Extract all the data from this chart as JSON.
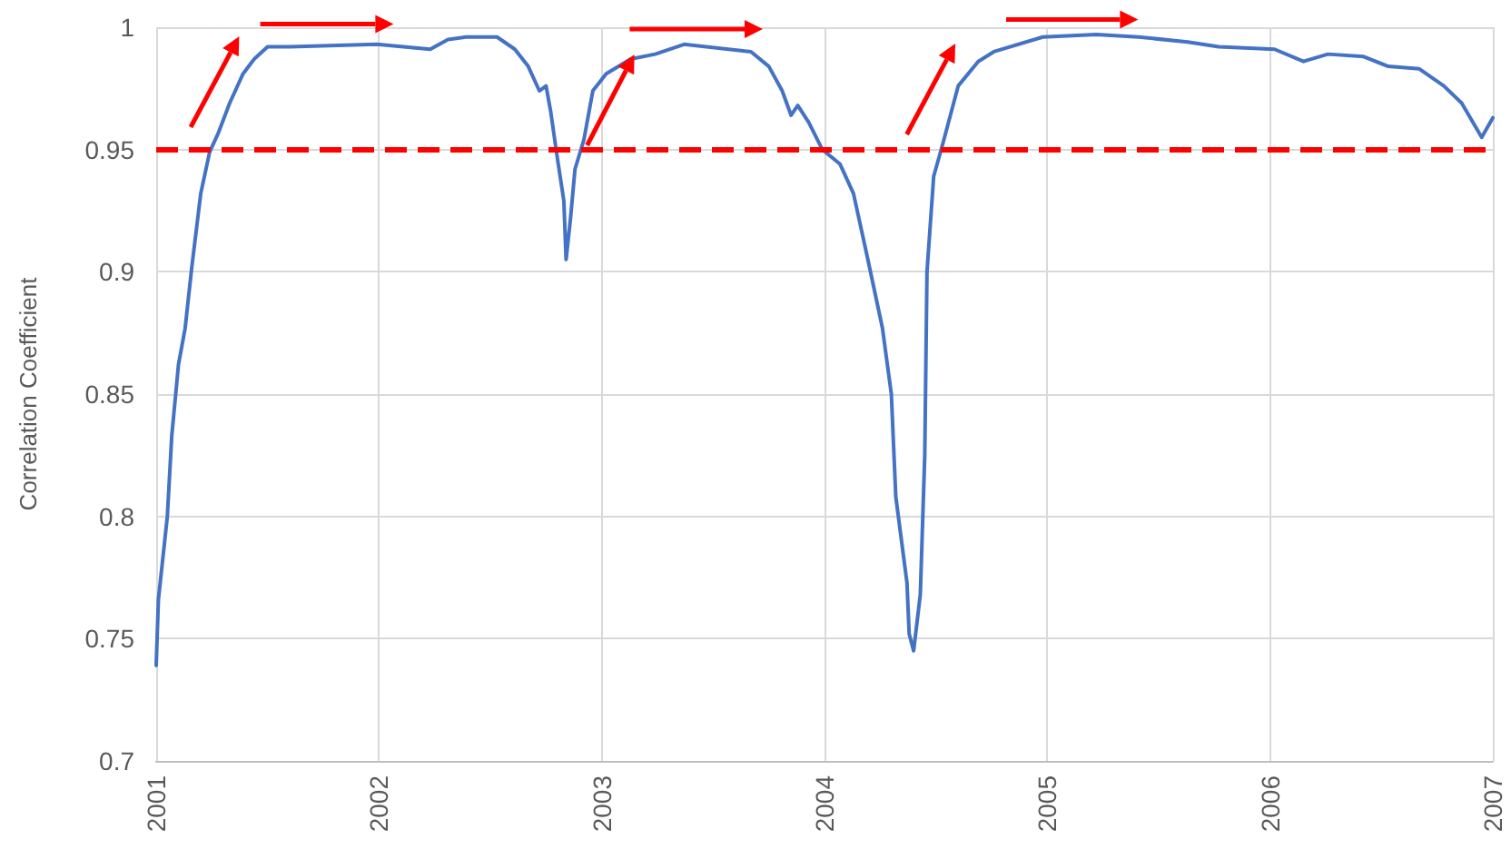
{
  "chart_data": {
    "type": "line",
    "ylabel": "Correlation Coefficient",
    "x": [
      2001.0,
      2001.01,
      2001.05,
      2001.07,
      2001.1,
      2001.13,
      2001.16,
      2001.2,
      2001.24,
      2001.28,
      2001.33,
      2001.39,
      2001.44,
      2001.5,
      2001.6,
      2001.99,
      2002.23,
      2002.31,
      2002.39,
      2002.53,
      2002.61,
      2002.67,
      2002.72,
      2002.75,
      2002.77,
      2002.8,
      2002.83,
      2002.84,
      2002.86,
      2002.88,
      2002.92,
      2002.96,
      2003.02,
      2003.13,
      2003.24,
      2003.37,
      2003.67,
      2003.75,
      2003.81,
      2003.85,
      2003.88,
      2003.93,
      2003.99,
      2004.07,
      2004.13,
      2004.19,
      2004.26,
      2004.3,
      2004.32,
      2004.37,
      2004.38,
      2004.4,
      2004.43,
      2004.45,
      2004.46,
      2004.49,
      2004.53,
      2004.6,
      2004.69,
      2004.76,
      2004.98,
      2005.22,
      2005.41,
      2005.63,
      2005.77,
      2006.02,
      2006.15,
      2006.26,
      2006.42,
      2006.53,
      2006.67,
      2006.78,
      2006.86,
      2006.95,
      2007.0
    ],
    "series": [
      {
        "color": "#4472c4",
        "values": [
          0.739,
          0.766,
          0.8,
          0.833,
          0.862,
          0.877,
          0.902,
          0.932,
          0.949,
          0.957,
          0.969,
          0.981,
          0.987,
          0.992,
          0.992,
          0.993,
          0.991,
          0.995,
          0.996,
          0.996,
          0.991,
          0.984,
          0.974,
          0.976,
          0.966,
          0.947,
          0.929,
          0.905,
          0.922,
          0.942,
          0.954,
          0.974,
          0.981,
          0.987,
          0.989,
          0.993,
          0.99,
          0.984,
          0.974,
          0.964,
          0.968,
          0.961,
          0.95,
          0.944,
          0.932,
          0.907,
          0.877,
          0.85,
          0.808,
          0.773,
          0.752,
          0.745,
          0.768,
          0.825,
          0.9,
          0.939,
          0.952,
          0.976,
          0.986,
          0.99,
          0.996,
          0.997,
          0.996,
          0.994,
          0.992,
          0.991,
          0.986,
          0.989,
          0.988,
          0.984,
          0.983,
          0.976,
          0.969,
          0.955,
          0.963
        ]
      }
    ],
    "xlim": [
      2001,
      2007
    ],
    "xticks": [
      2001,
      2002,
      2003,
      2004,
      2005,
      2006,
      2007
    ],
    "ylim": [
      0.7,
      1
    ],
    "yticks": [
      0.7,
      0.75,
      0.8,
      0.85,
      0.9,
      0.95,
      1
    ],
    "ref_lines": [
      {
        "axis": "y",
        "value": 0.95,
        "color": "#ff0000",
        "line_style": "dashed"
      }
    ],
    "grid": true,
    "marker": "none"
  }
}
